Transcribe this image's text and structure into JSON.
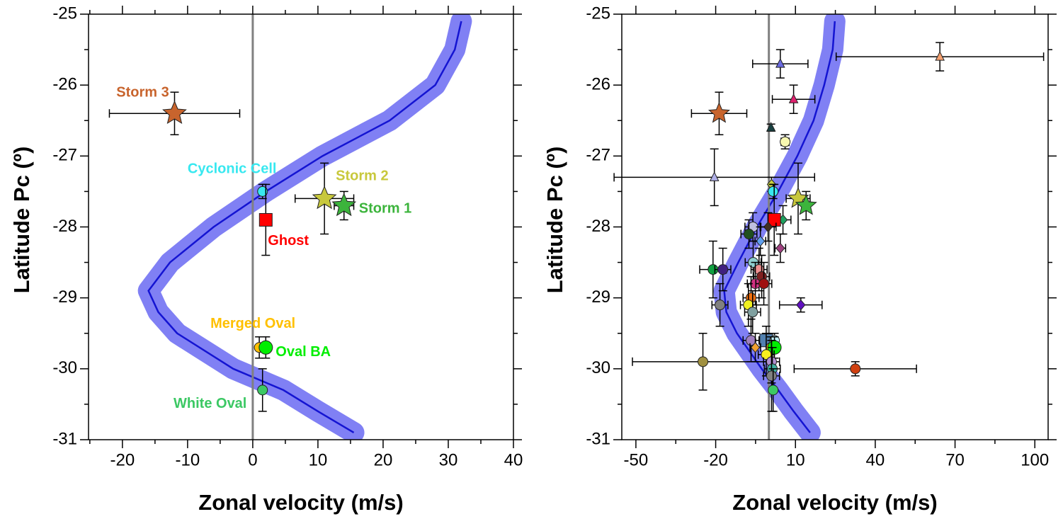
{
  "chart_data": [
    {
      "type": "scatter",
      "xlabel": "Zonal velocity (m/s)",
      "ylabel": "Latitude Pc (º)",
      "xlim": [
        -25.2,
        40
      ],
      "ylim": [
        -31,
        -25
      ],
      "xticks": [
        -20,
        -10,
        0,
        10,
        20,
        30,
        40
      ],
      "xminor_ticks": [
        -25,
        -15,
        -5,
        5,
        15,
        25,
        35
      ],
      "yticks": [
        -31,
        -30,
        -29,
        -28,
        -27,
        -26,
        -25
      ],
      "yminor_ticks": [
        -30.5,
        -29.5,
        -28.5,
        -27.5,
        -26.5,
        -25.5
      ],
      "vline": 0,
      "profile_x": [
        32,
        31,
        28,
        21,
        10.7,
        2,
        -6,
        -12.7,
        -16,
        -14.5,
        -11.6,
        -3,
        4.7,
        10,
        15.5
      ],
      "profile_y": [
        -25.1,
        -25.5,
        -26,
        -26.5,
        -27,
        -27.5,
        -28,
        -28.5,
        -28.9,
        -29.2,
        -29.5,
        -30,
        -30.3,
        -30.6,
        -30.9
      ],
      "points": [
        {
          "label": "Storm 3",
          "x": -12,
          "y": -26.4,
          "xerr": 10,
          "yerr": 0.3,
          "marker": "star",
          "color": "#c8642d"
        },
        {
          "label": "Cyclonic Cell",
          "x": 1.5,
          "y": -27.5,
          "xerr": 0,
          "yerr": 0.1,
          "marker": "circle",
          "color": "#38e8f0"
        },
        {
          "label": "Storm 2",
          "x": 11,
          "y": -27.6,
          "xerr": 4.5,
          "yerr": 0.5,
          "marker": "star",
          "color": "#c8c83c"
        },
        {
          "label": "Storm 1",
          "x": 14,
          "y": -27.7,
          "xerr": 1.5,
          "yerr": 0.2,
          "marker": "star",
          "color": "#3cb43c"
        },
        {
          "label": "Ghost",
          "x": 2,
          "y": -27.9,
          "xerr": 0,
          "yerr": 0.5,
          "marker": "square",
          "color": "#ff0000"
        },
        {
          "label": "Merged Oval",
          "x": 1,
          "y": -29.7,
          "xerr": 0,
          "yerr": 0.15,
          "marker": "circle",
          "color": "#ffc000"
        },
        {
          "label": "Oval BA",
          "x": 2,
          "y": -29.7,
          "xerr": 0,
          "yerr": 0.15,
          "marker": "bigcircle",
          "color": "#00ee00"
        },
        {
          "label": "White Oval",
          "x": 1.5,
          "y": -30.3,
          "xerr": 0,
          "yerr": 0.3,
          "marker": "circle",
          "color": "#3cc864"
        }
      ]
    },
    {
      "type": "scatter",
      "xlabel": "Zonal velocity (m/s)",
      "ylabel": "Latitude Pc (º)",
      "xlim": [
        -55.3,
        105
      ],
      "ylim": [
        -31,
        -25
      ],
      "xticks": [
        -50,
        -20,
        10,
        40,
        70,
        100
      ],
      "xminor_ticks": [
        -35,
        -5,
        25,
        55,
        85
      ],
      "yticks": [
        -31,
        -30,
        -29,
        -28,
        -27,
        -26,
        -25
      ],
      "yminor_ticks": [
        -30.5,
        -29.5,
        -28.5,
        -27.5,
        -26.5,
        -25.5
      ],
      "vline": 0,
      "profile_x": [
        24.8,
        24,
        20.8,
        16.8,
        10.7,
        3.5,
        -4.5,
        -11.5,
        -16.8,
        -16,
        -12,
        -2.7,
        3.5,
        9.3,
        15.5
      ],
      "profile_y": [
        -25.1,
        -25.5,
        -26,
        -26.5,
        -27,
        -27.5,
        -28,
        -28.5,
        -28.9,
        -29.2,
        -29.5,
        -30,
        -30.3,
        -30.6,
        -30.9
      ],
      "points": [
        {
          "x": 4.3,
          "y": -25.7,
          "xerr": 10.4,
          "yerr": 0.2,
          "marker": "triangle",
          "color": "#6a6ae0"
        },
        {
          "x": 64.3,
          "y": -25.6,
          "xerr": 39,
          "yerr": 0.2,
          "marker": "triangle",
          "color": "#f4a070"
        },
        {
          "x": 9.3,
          "y": -26.2,
          "xerr": 8,
          "yerr": 0.2,
          "marker": "triangle",
          "color": "#e0206e"
        },
        {
          "x": -18.7,
          "y": -26.4,
          "xerr": 10.4,
          "yerr": 0.3,
          "marker": "star",
          "color": "#c8642d"
        },
        {
          "x": 0.8,
          "y": -26.6,
          "xerr": 0,
          "yerr": 0.05,
          "marker": "triangle",
          "color": "#184040"
        },
        {
          "x": 6.1,
          "y": -26.8,
          "xerr": 1.5,
          "yerr": 0.1,
          "marker": "circle",
          "color": "#f8f8b0"
        },
        {
          "x": -20.5,
          "y": -27.3,
          "xerr": 37.7,
          "yerr": 0.4,
          "marker": "triangle",
          "color": "#b0b0e8"
        },
        {
          "x": 1,
          "y": -27.4,
          "xerr": 0,
          "yerr": 0.1,
          "marker": "diamond",
          "color": "#c8d040"
        },
        {
          "x": 1.6,
          "y": -27.5,
          "xerr": 0,
          "yerr": 0.1,
          "marker": "circle",
          "color": "#38e8f0"
        },
        {
          "x": 11,
          "y": -27.6,
          "xerr": 4.5,
          "yerr": 0.5,
          "marker": "star",
          "color": "#c8c83c"
        },
        {
          "x": 14,
          "y": -27.7,
          "xerr": 1.5,
          "yerr": 0.2,
          "marker": "star",
          "color": "#3cb43c"
        },
        {
          "x": 5.3,
          "y": -27.9,
          "xerr": 3,
          "yerr": 0.2,
          "marker": "diamond",
          "color": "#20a060"
        },
        {
          "x": 2,
          "y": -27.9,
          "xerr": 0,
          "yerr": 0.5,
          "marker": "square",
          "color": "#ff0000"
        },
        {
          "x": -6,
          "y": -28,
          "xerr": 3,
          "yerr": 0.2,
          "marker": "circle",
          "color": "#c0c0e0"
        },
        {
          "x": -0.3,
          "y": -28,
          "xerr": 3,
          "yerr": 0.2,
          "marker": "diamond",
          "color": "#403020"
        },
        {
          "x": -7.5,
          "y": -28.1,
          "xerr": 3,
          "yerr": 0.2,
          "marker": "circle",
          "color": "#205020"
        },
        {
          "x": -3.2,
          "y": -28.2,
          "xerr": 2,
          "yerr": 0.2,
          "marker": "diamond",
          "color": "#60a0f0"
        },
        {
          "x": 4.3,
          "y": -28.3,
          "xerr": 2,
          "yerr": 0.2,
          "marker": "diamond",
          "color": "#a04080"
        },
        {
          "x": -5.9,
          "y": -28.5,
          "xerr": 3,
          "yerr": 0.3,
          "marker": "circle",
          "color": "#90d0d0"
        },
        {
          "x": -21,
          "y": -28.6,
          "xerr": 5,
          "yerr": 0.4,
          "marker": "circle",
          "color": "#10a040"
        },
        {
          "x": -17.3,
          "y": -28.6,
          "xerr": 3,
          "yerr": 0.3,
          "marker": "circle",
          "color": "#402080"
        },
        {
          "x": -3.7,
          "y": -28.6,
          "xerr": 3,
          "yerr": 0.3,
          "marker": "circle",
          "color": "#f09090"
        },
        {
          "x": -2.7,
          "y": -28.7,
          "xerr": 3,
          "yerr": 0.3,
          "marker": "circle",
          "color": "#802020"
        },
        {
          "x": -5.1,
          "y": -28.8,
          "xerr": 3,
          "yerr": 0.3,
          "marker": "circle",
          "color": "#d03080"
        },
        {
          "x": -1.9,
          "y": -28.8,
          "xerr": 3,
          "yerr": 0.3,
          "marker": "circle",
          "color": "#a01010"
        },
        {
          "x": -6.7,
          "y": -29,
          "xerr": 3,
          "yerr": 0.3,
          "marker": "circle",
          "color": "#f07010"
        },
        {
          "x": 12,
          "y": -29.1,
          "xerr": 8,
          "yerr": 0.1,
          "marker": "diamond",
          "color": "#6010c0"
        },
        {
          "x": -18.4,
          "y": -29.1,
          "xerr": 3,
          "yerr": 0.3,
          "marker": "circle",
          "color": "#808080"
        },
        {
          "x": -7.7,
          "y": -29.1,
          "xerr": 3,
          "yerr": 0.3,
          "marker": "circle",
          "color": "#f0f020"
        },
        {
          "x": -6.1,
          "y": -29.2,
          "xerr": 3,
          "yerr": 0.3,
          "marker": "circle",
          "color": "#80a0a0"
        },
        {
          "x": -1,
          "y": -29.6,
          "xerr": 2,
          "yerr": 0.2,
          "marker": "square",
          "color": "#5080b0"
        },
        {
          "x": 2.1,
          "y": -29.6,
          "xerr": 0,
          "yerr": 0.1,
          "marker": "circle",
          "color": "#c0f0f8"
        },
        {
          "x": -6.7,
          "y": -29.6,
          "xerr": 3,
          "yerr": 0.3,
          "marker": "circle",
          "color": "#a080c0"
        },
        {
          "x": -5.1,
          "y": -29.7,
          "xerr": 2,
          "yerr": 0.2,
          "marker": "diamond",
          "color": "#f0a030"
        },
        {
          "x": 0.8,
          "y": -29.7,
          "xerr": 0,
          "yerr": 0.15,
          "marker": "circle",
          "color": "#ffc000"
        },
        {
          "x": 2.1,
          "y": -29.7,
          "xerr": 0,
          "yerr": 0.15,
          "marker": "bigcircle",
          "color": "#00ee00"
        },
        {
          "x": -24.8,
          "y": -29.9,
          "xerr": 26.5,
          "yerr": 0.4,
          "marker": "circle",
          "color": "#a09040"
        },
        {
          "x": -1,
          "y": -29.8,
          "xerr": 3,
          "yerr": 0.3,
          "marker": "circle",
          "color": "#f8f020"
        },
        {
          "x": 1,
          "y": -29.9,
          "xerr": 3,
          "yerr": 0.3,
          "marker": "circle",
          "color": "#b090d0"
        },
        {
          "x": 32.5,
          "y": -30,
          "xerr": 23,
          "yerr": 0.1,
          "marker": "circle",
          "color": "#d04010"
        },
        {
          "x": 1.3,
          "y": -30,
          "xerr": 3,
          "yerr": 0.3,
          "marker": "circle",
          "color": "#40b0a0"
        },
        {
          "x": 1,
          "y": -30.1,
          "xerr": 3,
          "yerr": 0.5,
          "marker": "circle",
          "color": "#808080"
        },
        {
          "x": 1.6,
          "y": -30.3,
          "xerr": 0,
          "yerr": 0.3,
          "marker": "circle",
          "color": "#3cc864"
        }
      ]
    }
  ]
}
